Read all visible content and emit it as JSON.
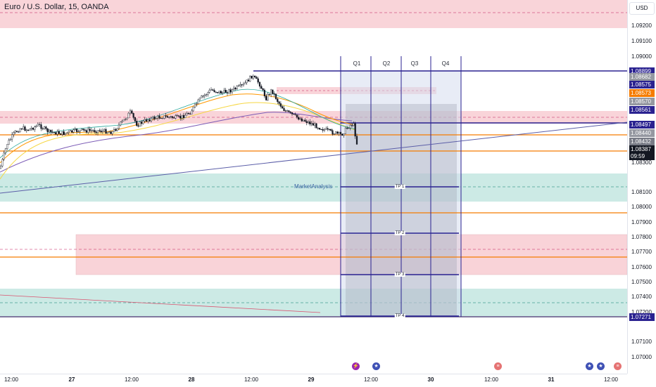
{
  "title": "Euro / U.S. Dollar, 15, OANDA",
  "currency": "USD",
  "colors": {
    "candle": "#131722",
    "red_zone": "#f7c5cc",
    "green_zone": "#b7e1da",
    "orange_line": "#f57c00",
    "navy_line": "#2a2290",
    "ema_orange": "#ff9800",
    "ema_yellow": "#f6d743",
    "ma_purple": "#7b5bb6",
    "trend_line": "#5b5ea8",
    "quarter_box": "#d6dcef",
    "grey_box": "#b9bcc7"
  },
  "chart_data": {
    "type": "candlestick",
    "symbol": "EURUSD",
    "timeframe": "15",
    "broker": "OANDA",
    "y_range": [
      1.0695,
      1.093
    ],
    "y_ticks": [
      "1.09200",
      "1.09100",
      "1.09000",
      "1.08300",
      "1.08100",
      "1.08000",
      "1.07900",
      "1.07800",
      "1.07700",
      "1.07600",
      "1.07500",
      "1.07400",
      "1.07200",
      "1.07100",
      "1.07000"
    ],
    "x_ticks": [
      {
        "label": "12:00",
        "bold": false
      },
      {
        "label": "27",
        "bold": true
      },
      {
        "label": "12:00",
        "bold": false
      },
      {
        "label": "28",
        "bold": true
      },
      {
        "label": "12:00",
        "bold": false
      },
      {
        "label": "29",
        "bold": true
      },
      {
        "label": "12:00",
        "bold": false
      },
      {
        "label": "30",
        "bold": true
      },
      {
        "label": "12:00",
        "bold": false
      },
      {
        "label": "31",
        "bold": true
      },
      {
        "label": "12:00",
        "bold": false
      }
    ],
    "price_tags": [
      {
        "value": "1.08899",
        "bg": "#2a2290"
      },
      {
        "value": "1.08682",
        "bg": "#9598a1"
      },
      {
        "value": "1.08575",
        "bg": "#2a2290"
      },
      {
        "value": "1.08573",
        "bg": "#f57c00"
      },
      {
        "value": "1.08570",
        "bg": "#9598a1"
      },
      {
        "value": "1.08561",
        "bg": "#2a2290"
      },
      {
        "value": "1.08497",
        "bg": "#2a2290"
      },
      {
        "value": "1.08440",
        "bg": "#9598a1"
      },
      {
        "value": "1.08432",
        "bg": "#787b86"
      },
      {
        "value": "1.08387",
        "bg": "#131722"
      },
      {
        "value": "09:59",
        "bg": "#131722"
      },
      {
        "value": "1.07271",
        "bg": "#2a2290"
      }
    ],
    "quarters": [
      "Q1",
      "Q2",
      "Q3",
      "Q4"
    ],
    "take_profits": [
      "TP 1",
      "TP 2",
      "TP 3",
      "TP 4"
    ],
    "annotation": "MarketAnalysis"
  }
}
